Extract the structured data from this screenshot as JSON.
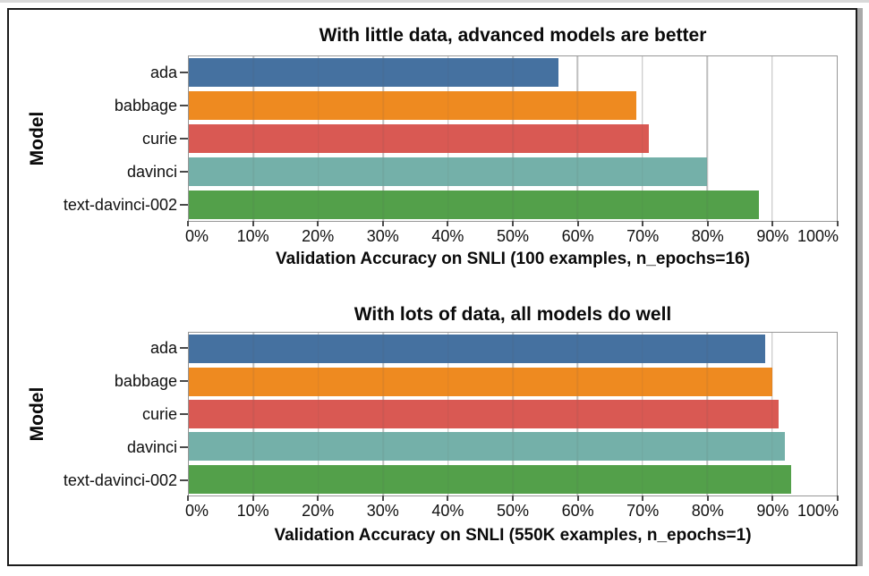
{
  "figure": {
    "background": "#ffffff",
    "border_color": "#1b1b1b"
  },
  "palette": {
    "bar_colors": [
      "#4571a0",
      "#ee8a20",
      "#d95953",
      "#74b0a9",
      "#53a04a"
    ],
    "gridline": "#cccccc",
    "spine": "#979797",
    "tick": "#4a4a4a"
  },
  "chart_data": [
    {
      "type": "bar",
      "orientation": "horizontal",
      "title": "With little data, advanced models are better",
      "xlabel": "Validation Accuracy on SNLI (100 examples, n_epochs=16)",
      "ylabel": "Model",
      "categories": [
        "ada",
        "babbage",
        "curie",
        "davinci",
        "text-davinci-002"
      ],
      "values": [
        57,
        69,
        71,
        80,
        88
      ],
      "unit": "%",
      "xlim": [
        0,
        100
      ],
      "x_tick_labels": [
        "0%",
        "10%",
        "20%",
        "30%",
        "40%",
        "50%",
        "60%",
        "70%",
        "80%",
        "90%",
        "100%"
      ],
      "grid": true,
      "legend": false
    },
    {
      "type": "bar",
      "orientation": "horizontal",
      "title": "With lots of data, all models do well",
      "xlabel": "Validation Accuracy on SNLI (550K examples, n_epochs=1)",
      "ylabel": "Model",
      "categories": [
        "ada",
        "babbage",
        "curie",
        "davinci",
        "text-davinci-002"
      ],
      "values": [
        89,
        90,
        91,
        92,
        93
      ],
      "unit": "%",
      "xlim": [
        0,
        100
      ],
      "x_tick_labels": [
        "0%",
        "10%",
        "20%",
        "30%",
        "40%",
        "50%",
        "60%",
        "70%",
        "80%",
        "90%",
        "100%"
      ],
      "grid": true,
      "legend": false
    }
  ]
}
